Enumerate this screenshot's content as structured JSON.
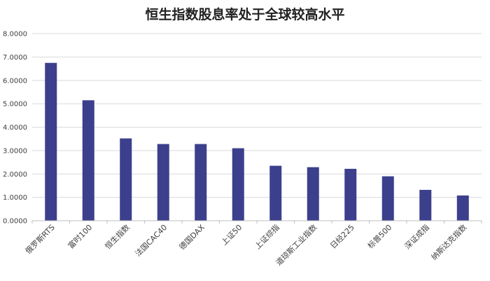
{
  "chart_data": {
    "type": "bar",
    "title": "恒生指数股息率处于全球较高水平",
    "xlabel": "",
    "ylabel": "",
    "categories": [
      "俄罗斯RTS",
      "富时100",
      "恒生指数",
      "法国CAC40",
      "德国DAX",
      "上证50",
      "上证综指",
      "道琼斯工业指数",
      "日经225",
      "标普500",
      "深证成指",
      "纳斯达克指数"
    ],
    "values": [
      6.75,
      5.15,
      3.52,
      3.28,
      3.28,
      3.1,
      2.35,
      2.29,
      2.22,
      1.9,
      1.32,
      1.08
    ],
    "ylim": [
      0,
      8
    ],
    "yticks": [
      "0.0000",
      "1.0000",
      "2.0000",
      "3.0000",
      "4.0000",
      "5.0000",
      "6.0000",
      "7.0000",
      "8.0000"
    ],
    "grid": true,
    "legend": "none",
    "colors": {
      "bar": "#3b3f8c",
      "grid": "#d9d9d9",
      "axis": "#bfbfbf"
    }
  }
}
